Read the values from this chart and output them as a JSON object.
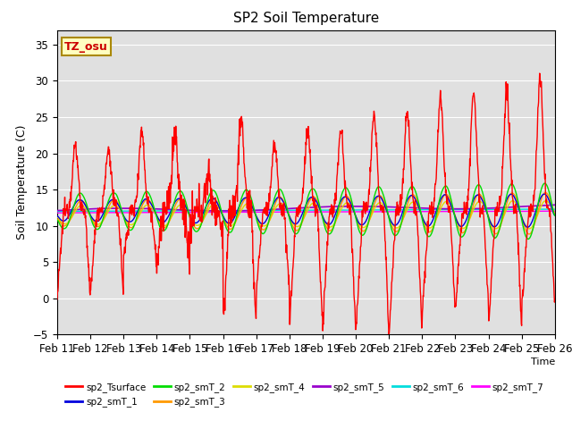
{
  "title": "SP2 Soil Temperature",
  "ylabel": "Soil Temperature (C)",
  "xlabel": "Time",
  "ylim": [
    -5,
    37
  ],
  "xlim": [
    0,
    15
  ],
  "xtick_labels": [
    "Feb 11",
    "Feb 12",
    "Feb 13",
    "Feb 14",
    "Feb 15",
    "Feb 16",
    "Feb 17",
    "Feb 18",
    "Feb 19",
    "Feb 20",
    "Feb 21",
    "Feb 22",
    "Feb 23",
    "Feb 24",
    "Feb 25",
    "Feb 26"
  ],
  "bg_color": "#e0e0e0",
  "fig_color": "#ffffff",
  "series_colors": {
    "sp2_Tsurface": "#ff0000",
    "sp2_smT_1": "#0000dd",
    "sp2_smT_2": "#00dd00",
    "sp2_smT_3": "#ff9900",
    "sp2_smT_4": "#dddd00",
    "sp2_smT_5": "#9900cc",
    "sp2_smT_6": "#00dddd",
    "sp2_smT_7": "#ff00ff"
  },
  "annotation_text": "TZ_osu",
  "annotation_color": "#cc0000",
  "annotation_bg": "#ffffc0",
  "annotation_border": "#aa8800",
  "figsize": [
    6.4,
    4.8
  ],
  "dpi": 100
}
